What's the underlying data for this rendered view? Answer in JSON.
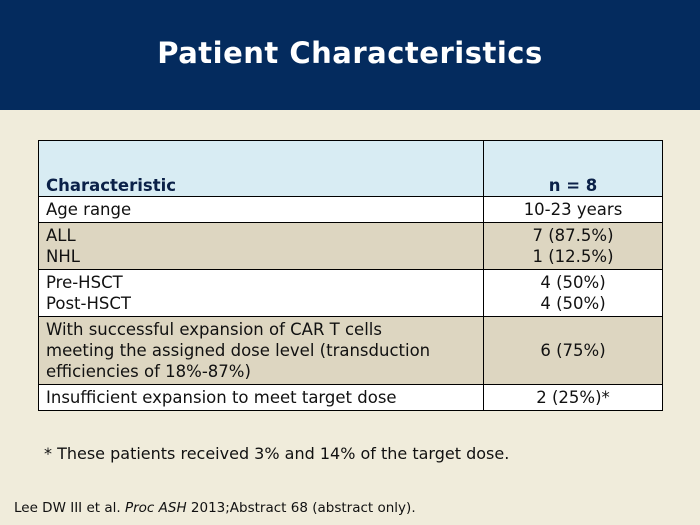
{
  "slide": {
    "title": "Patient Characteristics",
    "header_color": "#042b5e",
    "background_color": "#f0ecdb"
  },
  "table": {
    "headers": {
      "characteristic": "Characteristic",
      "n": "n = 8"
    },
    "rows": [
      {
        "characteristic": [
          "Age range"
        ],
        "n": [
          "10-23 years"
        ]
      },
      {
        "characteristic": [
          "ALL",
          "NHL"
        ],
        "n": [
          "7 (87.5%)",
          "1 (12.5%)"
        ]
      },
      {
        "characteristic": [
          "Pre-HSCT",
          "Post-HSCT"
        ],
        "n": [
          "4 (50%)",
          "4 (50%)"
        ]
      },
      {
        "characteristic": [
          "With successful expansion of CAR T cells",
          "meeting the assigned dose level (transduction",
          "efficiencies of 18%-87%)"
        ],
        "n": [
          "6 (75%)"
        ]
      },
      {
        "characteristic": [
          "Insufficient expansion to meet target dose"
        ],
        "n": [
          "2 (25%)*"
        ]
      }
    ]
  },
  "footnote": "* These patients received 3% and 14% of the target dose.",
  "citation": {
    "authors": "Lee DW III et al.",
    "journal": "Proc ASH",
    "details": "2013;Abstract 68 (abstract only)."
  }
}
